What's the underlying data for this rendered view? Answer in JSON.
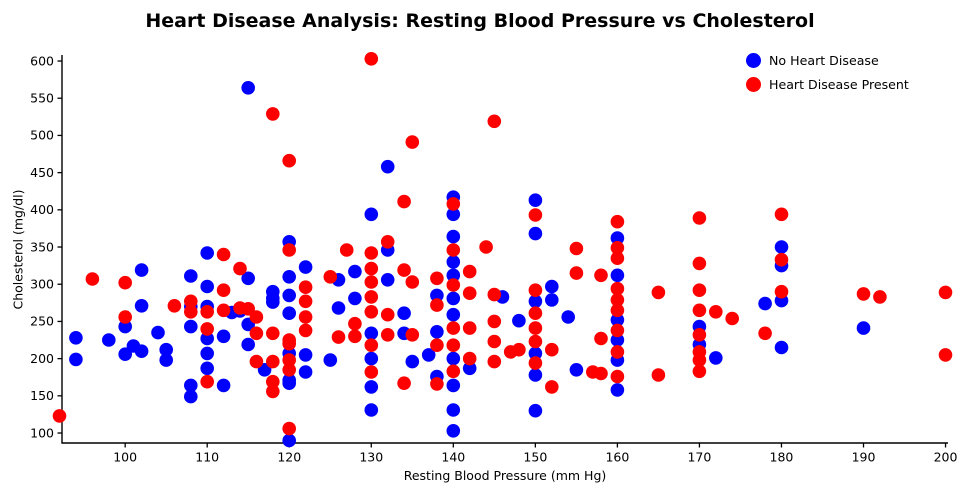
{
  "title": "Heart Disease Analysis: Resting Blood Pressure vs Cholesterol",
  "chart_data": {
    "type": "scatter",
    "title": "Heart Disease Analysis: Resting Blood Pressure vs Cholesterol",
    "xlabel": "Resting Blood Pressure (mm Hg)",
    "ylabel": "Cholesterol (mg/dl)",
    "xlim": [
      92.3,
      200.3
    ],
    "ylim": [
      86.6,
      608.1
    ],
    "x_ticks": [
      100,
      110,
      120,
      130,
      140,
      150,
      160,
      170,
      180,
      190,
      200
    ],
    "y_ticks": [
      100,
      150,
      200,
      250,
      300,
      350,
      400,
      450,
      500,
      550,
      600
    ],
    "grid": false,
    "legend_position": "upper right",
    "marker_radius": 6.8,
    "axis_color": "#000000",
    "series": [
      {
        "name": "No Heart Disease",
        "color": "#0000ff",
        "points": [
          [
            94,
            228
          ],
          [
            94,
            199
          ],
          [
            98,
            225
          ],
          [
            100,
            243
          ],
          [
            100,
            206
          ],
          [
            101,
            217
          ],
          [
            102,
            319
          ],
          [
            102,
            271
          ],
          [
            102,
            210
          ],
          [
            104,
            235
          ],
          [
            105,
            212
          ],
          [
            105,
            198
          ],
          [
            108,
            311
          ],
          [
            108,
            270
          ],
          [
            108,
            243
          ],
          [
            108,
            164
          ],
          [
            108,
            149
          ],
          [
            110,
            342
          ],
          [
            110,
            297
          ],
          [
            110,
            270
          ],
          [
            110,
            227
          ],
          [
            110,
            207
          ],
          [
            110,
            187
          ],
          [
            112,
            230
          ],
          [
            112,
            164
          ],
          [
            113,
            262
          ],
          [
            114,
            264
          ],
          [
            115,
            564
          ],
          [
            115,
            308
          ],
          [
            115,
            246
          ],
          [
            115,
            219
          ],
          [
            117,
            185
          ],
          [
            118,
            290
          ],
          [
            118,
            281
          ],
          [
            118,
            276
          ],
          [
            120,
            357
          ],
          [
            120,
            310
          ],
          [
            120,
            285
          ],
          [
            120,
            261
          ],
          [
            120,
            207
          ],
          [
            120,
            171
          ],
          [
            120,
            167
          ],
          [
            120,
            90
          ],
          [
            122,
            323
          ],
          [
            122,
            205
          ],
          [
            122,
            182
          ],
          [
            125,
            198
          ],
          [
            126,
            306
          ],
          [
            126,
            268
          ],
          [
            128,
            317
          ],
          [
            128,
            281
          ],
          [
            130,
            394
          ],
          [
            130,
            234
          ],
          [
            130,
            200
          ],
          [
            130,
            162
          ],
          [
            130,
            131
          ],
          [
            132,
            458
          ],
          [
            132,
            346
          ],
          [
            132,
            306
          ],
          [
            134,
            261
          ],
          [
            134,
            234
          ],
          [
            135,
            196
          ],
          [
            137,
            205
          ],
          [
            138,
            285
          ],
          [
            138,
            236
          ],
          [
            138,
            176
          ],
          [
            140,
            417
          ],
          [
            140,
            394
          ],
          [
            140,
            364
          ],
          [
            140,
            330
          ],
          [
            140,
            312
          ],
          [
            140,
            281
          ],
          [
            140,
            259
          ],
          [
            140,
            200
          ],
          [
            140,
            164
          ],
          [
            140,
            131
          ],
          [
            140,
            103
          ],
          [
            142,
            187
          ],
          [
            146,
            283
          ],
          [
            148,
            251
          ],
          [
            150,
            413
          ],
          [
            150,
            368
          ],
          [
            150,
            277
          ],
          [
            150,
            207
          ],
          [
            150,
            178
          ],
          [
            150,
            130
          ],
          [
            152,
            297
          ],
          [
            152,
            279
          ],
          [
            154,
            256
          ],
          [
            155,
            185
          ],
          [
            160,
            362
          ],
          [
            160,
            312
          ],
          [
            160,
            252
          ],
          [
            160,
            225
          ],
          [
            160,
            198
          ],
          [
            160,
            158
          ],
          [
            170,
            243
          ],
          [
            170,
            219
          ],
          [
            172,
            201
          ],
          [
            178,
            274
          ],
          [
            180,
            350
          ],
          [
            180,
            325
          ],
          [
            180,
            278
          ],
          [
            180,
            215
          ],
          [
            190,
            241
          ]
        ]
      },
      {
        "name": "Heart Disease Present",
        "color": "#ff0000",
        "points": [
          [
            92,
            123
          ],
          [
            96,
            307
          ],
          [
            100,
            302
          ],
          [
            100,
            256
          ],
          [
            106,
            271
          ],
          [
            108,
            277
          ],
          [
            108,
            263
          ],
          [
            110,
            263
          ],
          [
            110,
            240
          ],
          [
            110,
            169
          ],
          [
            112,
            340
          ],
          [
            112,
            292
          ],
          [
            112,
            265
          ],
          [
            114,
            321
          ],
          [
            114,
            268
          ],
          [
            115,
            267
          ],
          [
            116,
            256
          ],
          [
            116,
            234
          ],
          [
            116,
            196
          ],
          [
            118,
            529
          ],
          [
            118,
            234
          ],
          [
            118,
            196
          ],
          [
            118,
            169
          ],
          [
            118,
            156
          ],
          [
            120,
            466
          ],
          [
            120,
            346
          ],
          [
            120,
            225
          ],
          [
            120,
            220
          ],
          [
            120,
            198
          ],
          [
            120,
            185
          ],
          [
            120,
            106
          ],
          [
            122,
            296
          ],
          [
            122,
            277
          ],
          [
            122,
            256
          ],
          [
            122,
            238
          ],
          [
            125,
            310
          ],
          [
            126,
            229
          ],
          [
            127,
            346
          ],
          [
            128,
            247
          ],
          [
            128,
            230
          ],
          [
            130,
            603
          ],
          [
            130,
            342
          ],
          [
            130,
            321
          ],
          [
            130,
            303
          ],
          [
            130,
            283
          ],
          [
            130,
            263
          ],
          [
            130,
            218
          ],
          [
            130,
            182
          ],
          [
            132,
            357
          ],
          [
            132,
            259
          ],
          [
            132,
            232
          ],
          [
            134,
            411
          ],
          [
            134,
            319
          ],
          [
            134,
            167
          ],
          [
            135,
            491
          ],
          [
            135,
            303
          ],
          [
            135,
            232
          ],
          [
            138,
            308
          ],
          [
            138,
            272
          ],
          [
            138,
            218
          ],
          [
            138,
            166
          ],
          [
            140,
            408
          ],
          [
            140,
            346
          ],
          [
            140,
            299
          ],
          [
            140,
            241
          ],
          [
            140,
            218
          ],
          [
            140,
            183
          ],
          [
            142,
            317
          ],
          [
            142,
            288
          ],
          [
            142,
            241
          ],
          [
            142,
            200
          ],
          [
            144,
            350
          ],
          [
            145,
            519
          ],
          [
            145,
            286
          ],
          [
            145,
            250
          ],
          [
            145,
            223
          ],
          [
            145,
            196
          ],
          [
            147,
            209
          ],
          [
            148,
            212
          ],
          [
            150,
            393
          ],
          [
            150,
            292
          ],
          [
            150,
            261
          ],
          [
            150,
            241
          ],
          [
            150,
            223
          ],
          [
            150,
            194
          ],
          [
            152,
            212
          ],
          [
            152,
            162
          ],
          [
            155,
            348
          ],
          [
            155,
            315
          ],
          [
            157,
            182
          ],
          [
            158,
            312
          ],
          [
            158,
            227
          ],
          [
            158,
            180
          ],
          [
            160,
            384
          ],
          [
            160,
            349
          ],
          [
            160,
            335
          ],
          [
            160,
            294
          ],
          [
            160,
            279
          ],
          [
            160,
            265
          ],
          [
            160,
            238
          ],
          [
            160,
            209
          ],
          [
            160,
            176
          ],
          [
            165,
            289
          ],
          [
            165,
            178
          ],
          [
            170,
            389
          ],
          [
            170,
            328
          ],
          [
            170,
            292
          ],
          [
            170,
            265
          ],
          [
            170,
            232
          ],
          [
            170,
            209
          ],
          [
            170,
            198
          ],
          [
            170,
            183
          ],
          [
            172,
            263
          ],
          [
            174,
            254
          ],
          [
            178,
            234
          ],
          [
            180,
            394
          ],
          [
            180,
            333
          ],
          [
            180,
            290
          ],
          [
            190,
            287
          ],
          [
            192,
            283
          ],
          [
            200,
            289
          ],
          [
            200,
            205
          ]
        ]
      }
    ]
  },
  "legend": {
    "items": [
      {
        "label": "No Heart Disease",
        "color": "#0000ff"
      },
      {
        "label": "Heart Disease Present",
        "color": "#ff0000"
      }
    ]
  }
}
